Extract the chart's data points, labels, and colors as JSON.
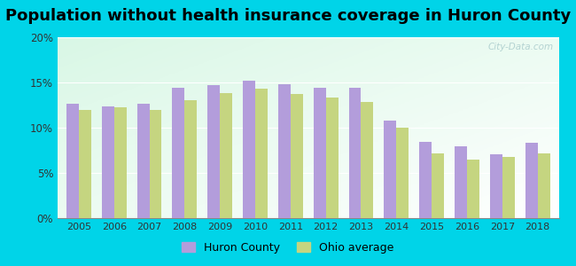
{
  "title": "Population without health insurance coverage in Huron County",
  "years": [
    2005,
    2006,
    2007,
    2008,
    2009,
    2010,
    2011,
    2012,
    2013,
    2014,
    2015,
    2016,
    2017,
    2018
  ],
  "huron_county": [
    12.6,
    12.4,
    12.6,
    14.4,
    14.7,
    15.2,
    14.8,
    14.4,
    14.4,
    10.8,
    8.4,
    7.9,
    7.1,
    8.3
  ],
  "ohio_average": [
    12.0,
    12.3,
    12.0,
    13.0,
    13.8,
    14.3,
    13.7,
    13.3,
    12.8,
    10.0,
    7.2,
    6.5,
    6.8,
    7.2
  ],
  "huron_color": "#b39ddb",
  "ohio_color": "#c5d580",
  "background_outer": "#00d4e8",
  "ylim": [
    0,
    20
  ],
  "yticks": [
    0,
    5,
    10,
    15,
    20
  ],
  "ytick_labels": [
    "0%",
    "5%",
    "10%",
    "15%",
    "20%"
  ],
  "watermark": "City-Data.com",
  "legend_huron": "Huron County",
  "legend_ohio": "Ohio average",
  "title_fontsize": 13,
  "bar_width": 0.35,
  "figsize": [
    6.5,
    3.0
  ],
  "dpi": 100
}
